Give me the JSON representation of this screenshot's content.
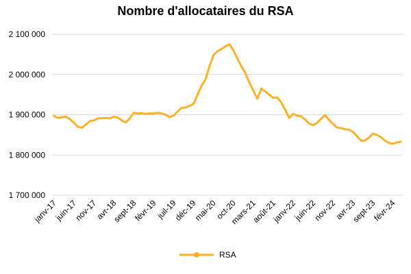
{
  "chart_data": {
    "type": "line",
    "title": "Nombre d'allocataires du RSA",
    "xlabel": "",
    "ylabel": "",
    "ylim": [
      1700000,
      2100000
    ],
    "yticks": [
      1700000,
      1800000,
      1900000,
      2000000,
      2100000
    ],
    "ytick_labels": [
      "1 700 000",
      "1 800 000",
      "1 900 000",
      "2 000 000",
      "2 100 000"
    ],
    "xtick_labels": [
      "janv-17",
      "juin-17",
      "nov-17",
      "avr-18",
      "sept-18",
      "févr-19",
      "juil-19",
      "déc-19",
      "mai-20",
      "oct-20",
      "mars-21",
      "août-21",
      "janv-22",
      "juin-22",
      "nov-22",
      "avr-23",
      "sept-23",
      "févr-24"
    ],
    "xtick_step_months": 5,
    "x_start": "2017-01",
    "grid": true,
    "legend": {
      "position": "bottom",
      "entries": [
        "RSA"
      ]
    },
    "colors": {
      "series": "#F9B22A",
      "grid": "#d9d9d9"
    },
    "series": [
      {
        "name": "RSA",
        "values": [
          1897000,
          1892000,
          1894000,
          1895000,
          1889000,
          1880000,
          1870000,
          1868000,
          1876000,
          1884000,
          1886000,
          1891000,
          1891000,
          1892000,
          1891000,
          1895000,
          1893000,
          1886000,
          1881000,
          1891000,
          1905000,
          1903000,
          1904000,
          1902000,
          1903000,
          1903000,
          1905000,
          1903000,
          1900000,
          1894000,
          1898000,
          1908000,
          1917000,
          1918000,
          1922000,
          1927000,
          1950000,
          1972000,
          1988000,
          2020000,
          2048000,
          2058000,
          2063000,
          2070000,
          2075000,
          2060000,
          2040000,
          2020000,
          2003000,
          1980000,
          1960000,
          1940000,
          1965000,
          1958000,
          1950000,
          1942000,
          1943000,
          1931000,
          1912000,
          1892000,
          1902000,
          1898000,
          1896000,
          1888000,
          1878000,
          1874000,
          1880000,
          1890000,
          1899000,
          1887000,
          1877000,
          1868000,
          1867000,
          1864000,
          1863000,
          1857000,
          1847000,
          1836000,
          1836000,
          1843000,
          1853000,
          1850000,
          1844000,
          1836000,
          1830000,
          1828000,
          1831000,
          1833000
        ]
      }
    ]
  }
}
